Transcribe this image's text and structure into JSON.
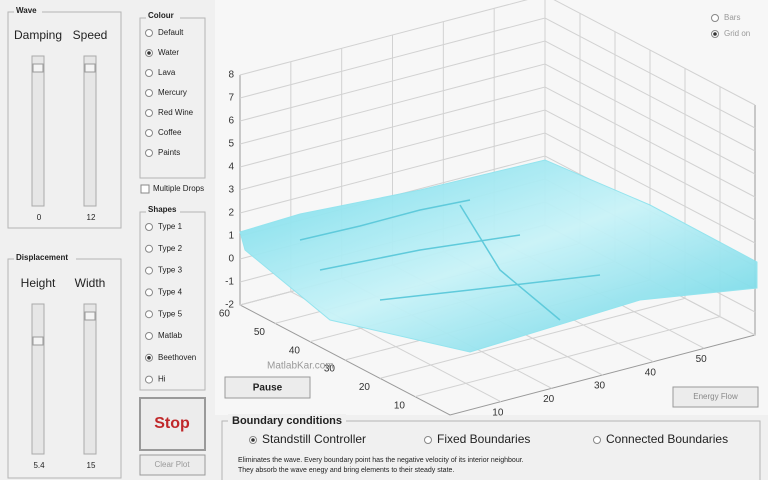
{
  "wave": {
    "title": "Wave",
    "sliders": [
      {
        "label": "Damping",
        "value": "0"
      },
      {
        "label": "Speed",
        "value": "12"
      }
    ]
  },
  "displacement": {
    "title": "Displacement",
    "sliders": [
      {
        "label": "Height",
        "value": "5.4"
      },
      {
        "label": "Width",
        "value": "15"
      }
    ]
  },
  "colour": {
    "title": "Colour",
    "options": [
      "Default",
      "Water",
      "Lava",
      "Mercury",
      "Red Wine",
      "Coffee",
      "Paints"
    ],
    "selected": 1
  },
  "multiple_drops": {
    "label": "Multiple Drops",
    "checked": false
  },
  "shapes": {
    "title": "Shapes",
    "options": [
      "Type 1",
      "Type 2",
      "Type 3",
      "Type 4",
      "Type 5",
      "Matlab",
      "Beethoven",
      "Hi"
    ],
    "selected": 6
  },
  "view_options": {
    "options": [
      "Bars",
      "Grid on"
    ],
    "selected": 1
  },
  "plot": {
    "xlim": [
      0,
      60
    ],
    "ylim": [
      0,
      60
    ],
    "zlim": [
      -2,
      8
    ],
    "xticks": [
      10,
      20,
      30,
      40,
      50
    ],
    "yticks": [
      10,
      20,
      30,
      40,
      50,
      60
    ],
    "zticks": [
      -2,
      -1,
      0,
      1,
      2,
      3,
      4,
      5,
      6,
      7,
      8
    ],
    "watermark": "MatlabKar.com"
  },
  "buttons": {
    "pause": "Pause",
    "stop": "Stop",
    "clear": "Clear Plot",
    "energy": "Energy Flow"
  },
  "boundary": {
    "title": "Boundary conditions",
    "options": [
      "Standstill Controller",
      "Fixed Boundaries",
      "Connected Boundaries"
    ],
    "selected": 0,
    "description": [
      "Eliminates the wave. Every boundary point has the negative velocity of its interior neighbour.",
      "They absorb the wave enegy and bring elements to their steady state."
    ]
  }
}
